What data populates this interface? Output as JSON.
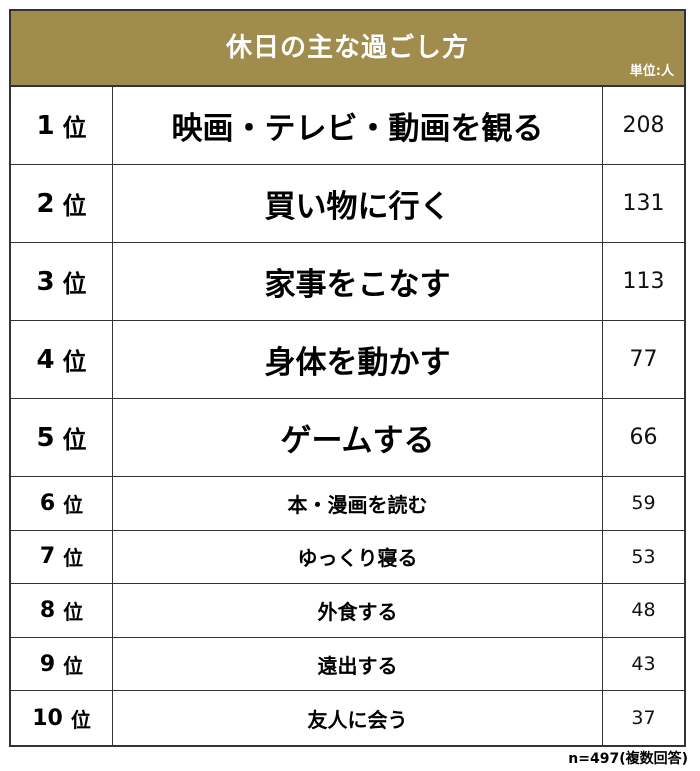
{
  "header": {
    "title": "休日の主な過ごし方",
    "unit": "単位:人",
    "background_color": "#A08C4C"
  },
  "rows": [
    {
      "rank": "1",
      "suffix": "位",
      "activity": "映画・テレビ・動画を観る",
      "count": "208"
    },
    {
      "rank": "2",
      "suffix": "位",
      "activity": "買い物に行く",
      "count": "131"
    },
    {
      "rank": "3",
      "suffix": "位",
      "activity": "家事をこなす",
      "count": "113"
    },
    {
      "rank": "4",
      "suffix": "位",
      "activity": "身体を動かす",
      "count": "77"
    },
    {
      "rank": "5",
      "suffix": "位",
      "activity": "ゲームする",
      "count": "66"
    },
    {
      "rank": "6",
      "suffix": "位",
      "activity": "本・漫画を読む",
      "count": "59"
    },
    {
      "rank": "7",
      "suffix": "位",
      "activity": "ゆっくり寝る",
      "count": "53"
    },
    {
      "rank": "8",
      "suffix": "位",
      "activity": "外食する",
      "count": "48"
    },
    {
      "rank": "9",
      "suffix": "位",
      "activity": "遠出する",
      "count": "43"
    },
    {
      "rank": "10",
      "suffix": "位",
      "activity": "友人に会う",
      "count": "37"
    }
  ],
  "footnote": "n=497(複数回答)"
}
